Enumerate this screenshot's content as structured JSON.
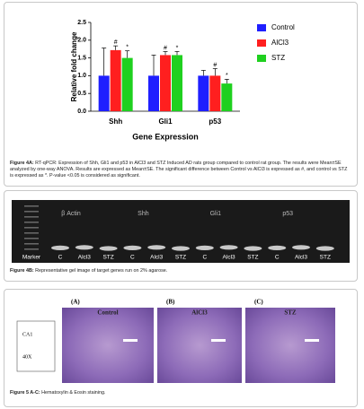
{
  "figure4a": {
    "chart": {
      "type": "bar",
      "ylabel": "Relative fold change",
      "xlabel": "Gene Expression",
      "categories": [
        "Shh",
        "Gli1",
        "p53"
      ],
      "ylim": [
        0,
        2.5
      ],
      "yticks": [
        {
          "value": 0,
          "label": "0.0"
        },
        {
          "value": 0.5,
          "label": "0.5"
        },
        {
          "value": 1,
          "label": "1.0"
        },
        {
          "value": 1.5,
          "label": "1.5"
        },
        {
          "value": 2,
          "label": "2.0"
        },
        {
          "value": 2.5,
          "label": "2.5"
        }
      ],
      "legend": "top-right",
      "series": [
        {
          "name": "Control",
          "color": "#1f1fff",
          "values": [
            1.0,
            1.0,
            1.0
          ],
          "errors": [
            0.78,
            0.58,
            0.15
          ]
        },
        {
          "name": "AlCl3",
          "color": "#ff1f1f",
          "values": [
            1.72,
            1.58,
            1.0
          ],
          "errors": [
            0.12,
            0.1,
            0.2
          ],
          "labels": [
            "#",
            "#",
            "#"
          ]
        },
        {
          "name": "STZ",
          "color": "#1fd01f",
          "values": [
            1.5,
            1.58,
            0.78
          ],
          "errors": [
            0.2,
            0.1,
            0.12
          ],
          "labels": [
            "*",
            "*",
            "*"
          ]
        }
      ]
    },
    "caption_label": "Figure 4A:",
    "caption": "RT-qPCR: Expression of Shh, Gli1 and p53 in AlCl3 and STZ Induced AD rats group compared to control rat group. The results were Mean±SE analyzed by one-way ANOVA. Results are expressed as Mean±SE. The significant difference between Control vs AlCl3 is expressed as #, and control vs STZ is expressed as *. P-value <0.05 is considered as significant."
  },
  "figure4b": {
    "genes": [
      "β Actin",
      "Shh",
      "Gli1",
      "p53"
    ],
    "lanes": [
      "Marker",
      "C",
      "Alcl3",
      "STZ",
      "C",
      "Alcl3",
      "STZ",
      "C",
      "Alcl3",
      "STZ",
      "C",
      "Alcl3",
      "STZ"
    ],
    "caption_label": "Figure 4B:",
    "caption": "Representative gel image of target genes run on 2% agarose."
  },
  "figure5": {
    "region": "CA1",
    "magnification": "40X",
    "panels": [
      {
        "tag": "(A)",
        "title": "Control"
      },
      {
        "tag": "(B)",
        "title": "AlCl3"
      },
      {
        "tag": "(C)",
        "title": "STZ"
      }
    ],
    "caption_label": "Figure 5 A-C:",
    "caption": "Hematoxylin & Eosin staining."
  }
}
